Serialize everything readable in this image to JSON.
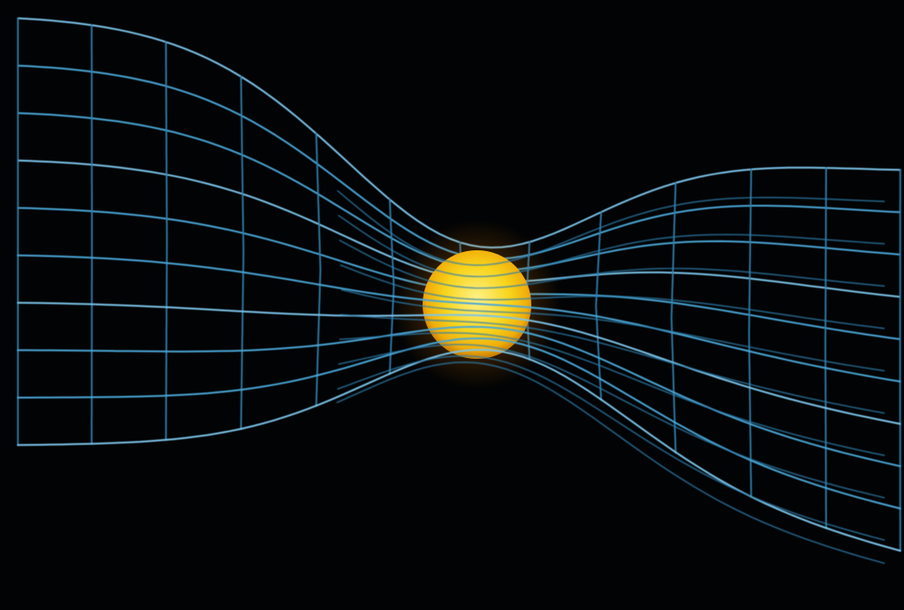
{
  "scene": {
    "background": "#020304",
    "mesh": {
      "line_color": "#4aa6d6",
      "line_color_dim": "#2f7fae",
      "line_color_bright": "#7cc4ea"
    },
    "central_body": {
      "kind": "sun",
      "core_color": "#fff07a",
      "mid_color": "#f7d21c",
      "edge_color": "#e39a06",
      "glow_color": "#ffb400"
    }
  }
}
